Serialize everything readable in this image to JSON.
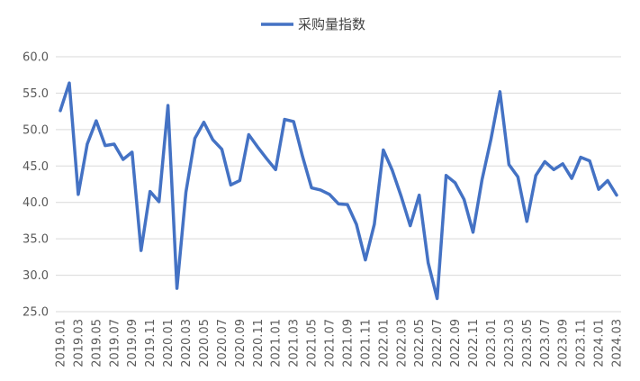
{
  "chart_data": {
    "type": "line",
    "title": "",
    "xlabel": "",
    "ylabel": "",
    "ylim": [
      25,
      60
    ],
    "yticks": [
      25,
      30,
      35,
      40,
      45,
      50,
      55,
      60
    ],
    "ytick_labels": [
      "25.0",
      "30.0",
      "35.0",
      "40.0",
      "45.0",
      "50.0",
      "55.0",
      "60.0"
    ],
    "grid": "horizontal",
    "legend_position": "top-center",
    "x": [
      "2019.01",
      "2019.02",
      "2019.03",
      "2019.04",
      "2019.05",
      "2019.06",
      "2019.07",
      "2019.08",
      "2019.09",
      "2019.10",
      "2019.11",
      "2019.12",
      "2020.01",
      "2020.02",
      "2020.03",
      "2020.04",
      "2020.05",
      "2020.06",
      "2020.07",
      "2020.08",
      "2020.09",
      "2020.10",
      "2020.11",
      "2020.12",
      "2021.01",
      "2021.02",
      "2021.03",
      "2021.04",
      "2021.05",
      "2021.06",
      "2021.07",
      "2021.08",
      "2021.09",
      "2021.10",
      "2021.11",
      "2021.12",
      "2022.01",
      "2022.02",
      "2022.03",
      "2022.04",
      "2022.05",
      "2022.06",
      "2022.07",
      "2022.08",
      "2022.09",
      "2022.10",
      "2022.11",
      "2022.12",
      "2023.01",
      "2023.02",
      "2023.03",
      "2023.04",
      "2023.05",
      "2023.06",
      "2023.07",
      "2023.08",
      "2023.09",
      "2023.10",
      "2023.11",
      "2023.12",
      "2024.01",
      "2024.02",
      "2024.03"
    ],
    "x_tick_labels": [
      "2019.01",
      "2019.03",
      "2019.05",
      "2019.07",
      "2019.09",
      "2019.11",
      "2020.01",
      "2020.03",
      "2020.05",
      "2020.07",
      "2020.09",
      "2020.11",
      "2021.01",
      "2021.03",
      "2021.05",
      "2021.07",
      "2021.09",
      "2021.11",
      "2022.01",
      "2022.03",
      "2022.05",
      "2022.07",
      "2022.09",
      "2022.11",
      "2023.01",
      "2023.03",
      "2023.05",
      "2023.07",
      "2023.09",
      "2023.11",
      "2024.01",
      "2024.03"
    ],
    "series": [
      {
        "name": "采购量指数",
        "color": "#4472c4",
        "values": [
          52.6,
          56.4,
          41.1,
          48.0,
          51.2,
          47.8,
          48.0,
          45.9,
          46.9,
          33.4,
          41.5,
          40.1,
          53.3,
          28.2,
          41.4,
          48.8,
          51.0,
          48.6,
          47.3,
          42.4,
          43.0,
          49.3,
          47.6,
          46.0,
          44.5,
          51.4,
          51.1,
          46.3,
          42.0,
          41.7,
          41.1,
          39.8,
          39.7,
          37.0,
          32.1,
          37.0,
          47.2,
          44.4,
          40.8,
          36.8,
          41.0,
          31.7,
          26.8,
          43.7,
          42.7,
          40.4,
          35.9,
          43.1,
          48.7,
          55.2,
          45.2,
          43.5,
          37.4,
          43.7,
          45.6,
          44.5,
          45.3,
          43.3,
          46.2,
          45.7,
          41.8,
          43.0,
          41.0
        ]
      }
    ]
  },
  "colors": {
    "gridline": "#d9d9d9",
    "axis_text": "#595959",
    "series": "#4472c4"
  }
}
